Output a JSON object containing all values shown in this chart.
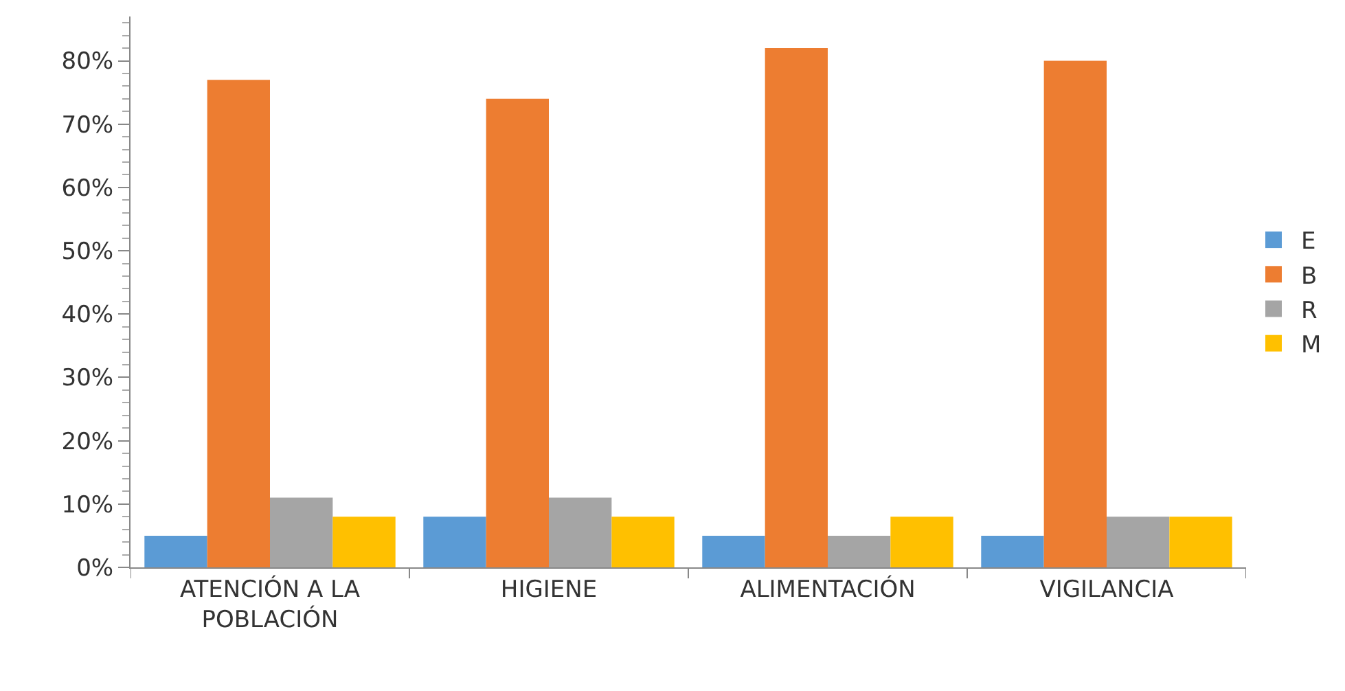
{
  "chart_data": {
    "type": "bar",
    "categories": [
      "ATENCIÓN A LA POBLACIÓN",
      "HIGIENE",
      "ALIMENTACIÓN",
      "VIGILANCIA"
    ],
    "series": [
      {
        "name": "E",
        "color": "#5b9bd5",
        "values": [
          5,
          8,
          5,
          5
        ]
      },
      {
        "name": "B",
        "color": "#ed7d31",
        "values": [
          77,
          74,
          82,
          80
        ]
      },
      {
        "name": "R",
        "color": "#a5a5a5",
        "values": [
          11,
          11,
          5,
          8
        ]
      },
      {
        "name": "M",
        "color": "#ffc000",
        "values": [
          8,
          8,
          8,
          8
        ]
      }
    ],
    "ylim": [
      0,
      87
    ],
    "yticks": [
      {
        "value": 0,
        "label": "0%"
      },
      {
        "value": 10,
        "label": "10%"
      },
      {
        "value": 20,
        "label": "20%"
      },
      {
        "value": 30,
        "label": "30%"
      },
      {
        "value": 40,
        "label": "40%"
      },
      {
        "value": 50,
        "label": "50%"
      },
      {
        "value": 60,
        "label": "60%"
      },
      {
        "value": 70,
        "label": "70%"
      },
      {
        "value": 80,
        "label": "80%"
      }
    ],
    "grid": false,
    "legend": "right"
  }
}
